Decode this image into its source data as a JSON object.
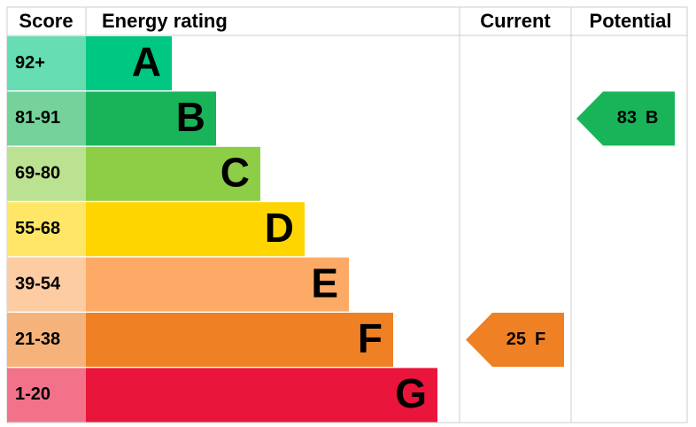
{
  "chart_data": {
    "type": "epc",
    "headers": {
      "score": "Score",
      "rating": "Energy rating",
      "current": "Current",
      "potential": "Potential"
    },
    "bands": [
      {
        "range": "92+",
        "letter": "A",
        "color": "#00c781"
      },
      {
        "range": "81-91",
        "letter": "B",
        "color": "#19b459"
      },
      {
        "range": "69-80",
        "letter": "C",
        "color": "#8dce46"
      },
      {
        "range": "55-68",
        "letter": "D",
        "color": "#ffd500"
      },
      {
        "range": "39-54",
        "letter": "E",
        "color": "#fcaa65"
      },
      {
        "range": "21-38",
        "letter": "F",
        "color": "#ef8023"
      },
      {
        "range": "1-20",
        "letter": "G",
        "color": "#e9153b"
      }
    ],
    "current": {
      "value": 25,
      "letter": "F"
    },
    "potential": {
      "value": 83,
      "letter": "B"
    }
  }
}
